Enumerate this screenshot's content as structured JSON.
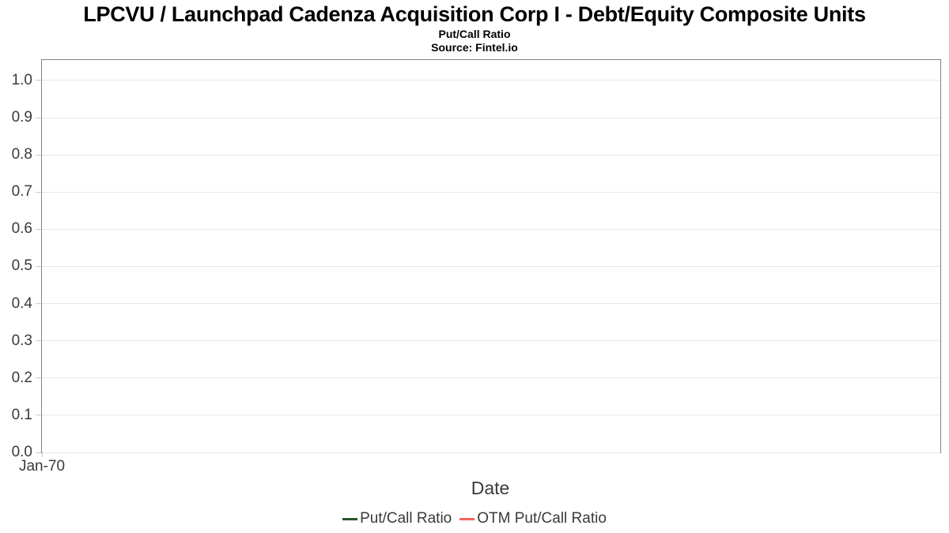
{
  "header": {
    "title": "LPCVU / Launchpad Cadenza Acquisition Corp I - Debt/Equity Composite Units",
    "subtitle": "Put/Call Ratio",
    "source": "Source: Fintel.io"
  },
  "chart_data": {
    "type": "line",
    "title": "LPCVU / Launchpad Cadenza Acquisition Corp I - Debt/Equity Composite Units",
    "subtitle": "Put/Call Ratio",
    "source": "Source: Fintel.io",
    "xlabel": "Date",
    "ylabel": "",
    "ylim": [
      0,
      1.055
    ],
    "grid": "horizontal-only",
    "legend_position": "bottom-center",
    "plot_is_empty": true,
    "yticks": [
      {
        "label": "0.0",
        "value": 0.0
      },
      {
        "label": "0.1",
        "value": 0.1
      },
      {
        "label": "0.2",
        "value": 0.2
      },
      {
        "label": "0.3",
        "value": 0.3
      },
      {
        "label": "0.4",
        "value": 0.4
      },
      {
        "label": "0.5",
        "value": 0.5
      },
      {
        "label": "0.6",
        "value": 0.6
      },
      {
        "label": "0.7",
        "value": 0.7
      },
      {
        "label": "0.8",
        "value": 0.8
      },
      {
        "label": "0.9",
        "value": 0.9
      },
      {
        "label": "1.0",
        "value": 1.0
      }
    ],
    "xticks": [
      {
        "label": "Jan-70",
        "position": 0
      }
    ],
    "series": [
      {
        "name": "Put/Call Ratio",
        "color": "#24572f",
        "x": [],
        "values": []
      },
      {
        "name": "OTM Put/Call Ratio",
        "color": "#f4645c",
        "x": [],
        "values": []
      }
    ]
  },
  "colors": {
    "plot_border": "#828282",
    "gridline": "#e9e9e9",
    "tick": "#c9c9c9",
    "axis_text": "#3a3a3a",
    "title_text": "#000000"
  }
}
